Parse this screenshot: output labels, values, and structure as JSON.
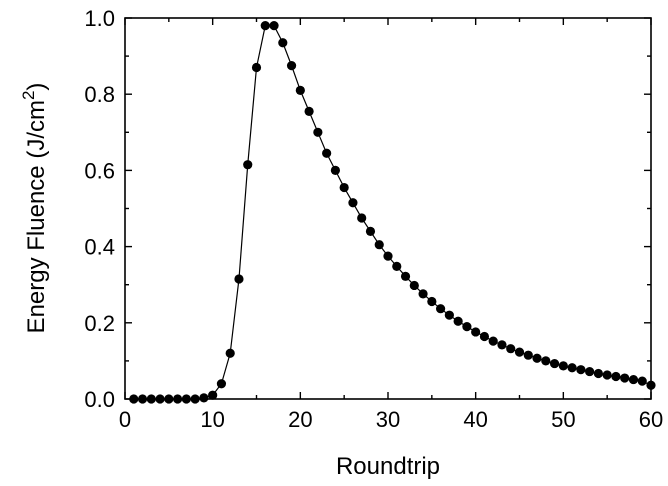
{
  "chart_data": {
    "type": "line",
    "title": "",
    "xlabel": "Roundtrip",
    "ylabel": "Energy Fluence (J/cm",
    "ylabel_superscript": "2",
    "ylabel_suffix": ")",
    "xlim": [
      0,
      60
    ],
    "ylim": [
      0,
      1.0
    ],
    "xticks": [
      0,
      10,
      20,
      30,
      40,
      50,
      60
    ],
    "yticks": [
      0.0,
      0.2,
      0.4,
      0.6,
      0.8,
      1.0
    ],
    "xtick_labels": [
      "0",
      "10",
      "20",
      "30",
      "40",
      "50",
      "60"
    ],
    "ytick_labels": [
      "0.0",
      "0.2",
      "0.4",
      "0.6",
      "0.8",
      "1.0"
    ],
    "grid": false,
    "marker": "filled-circle",
    "series_color": "#000000",
    "series": [
      {
        "x": [
          1,
          2,
          3,
          4,
          5,
          6,
          7,
          8,
          9,
          10,
          11,
          12,
          13,
          14,
          15,
          16,
          17,
          18,
          19,
          20,
          21,
          22,
          23,
          24,
          25,
          26,
          27,
          28,
          29,
          30,
          31,
          32,
          33,
          34,
          35,
          36,
          37,
          38,
          39,
          40,
          41,
          42,
          43,
          44,
          45,
          46,
          47,
          48,
          49,
          50,
          51,
          52,
          53,
          54,
          55,
          56,
          57,
          58,
          59,
          60
        ],
        "y": [
          0.0,
          0.0,
          0.0,
          0.0,
          0.0,
          0.0,
          0.0,
          0.0,
          0.003,
          0.01,
          0.04,
          0.12,
          0.315,
          0.615,
          0.87,
          0.98,
          0.98,
          0.935,
          0.875,
          0.81,
          0.755,
          0.7,
          0.645,
          0.6,
          0.555,
          0.515,
          0.475,
          0.44,
          0.405,
          0.375,
          0.348,
          0.322,
          0.298,
          0.276,
          0.256,
          0.237,
          0.22,
          0.204,
          0.19,
          0.176,
          0.164,
          0.152,
          0.142,
          0.132,
          0.123,
          0.115,
          0.107,
          0.1,
          0.093,
          0.087,
          0.082,
          0.077,
          0.072,
          0.067,
          0.063,
          0.059,
          0.055,
          0.051,
          0.047,
          0.036
        ]
      }
    ]
  }
}
